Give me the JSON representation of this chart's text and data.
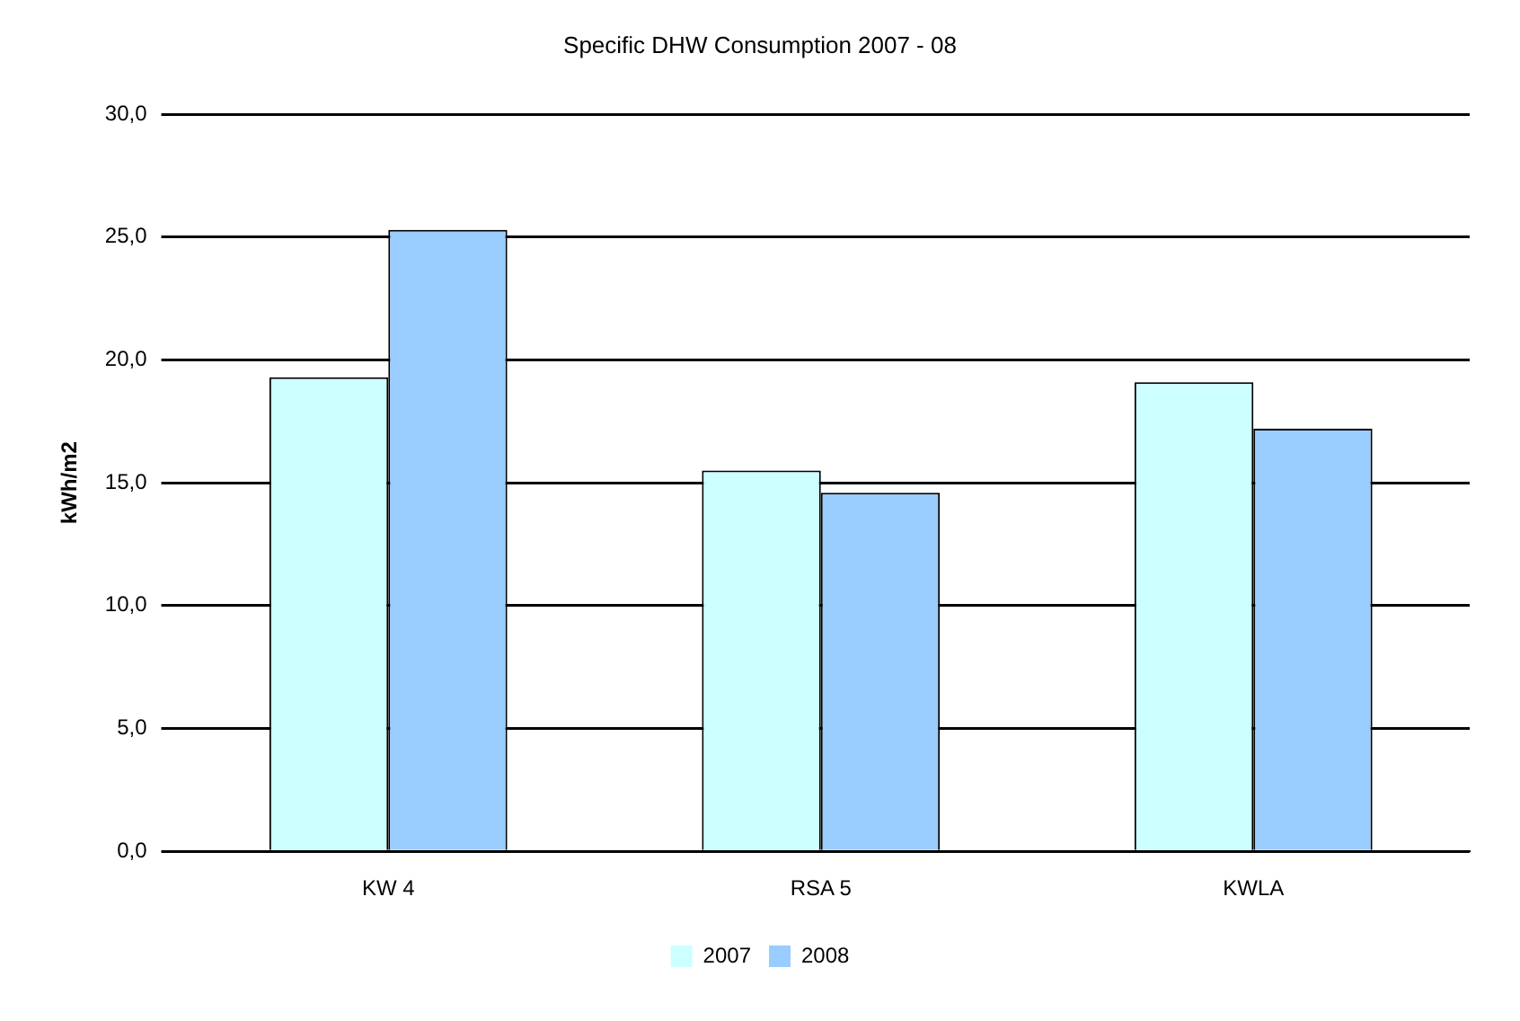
{
  "chart_data": {
    "type": "bar",
    "title": "Specific DHW Consumption 2007 - 08",
    "ylabel": "kWh/m2",
    "categories": [
      "KW 4",
      "RSA 5",
      "KWLA"
    ],
    "series": [
      {
        "name": "2007",
        "color": "#ccffff",
        "values": [
          19.3,
          15.5,
          19.1
        ]
      },
      {
        "name": "2008",
        "color": "#99ccff",
        "values": [
          25.3,
          14.6,
          17.2
        ]
      }
    ],
    "ylim": [
      0,
      30
    ],
    "yticks": [
      {
        "value": 0,
        "label": "0,0"
      },
      {
        "value": 5,
        "label": "5,0"
      },
      {
        "value": 10,
        "label": "10,0"
      },
      {
        "value": 15,
        "label": "15,0"
      },
      {
        "value": 20,
        "label": "20,0"
      },
      {
        "value": 25,
        "label": "25,0"
      },
      {
        "value": 30,
        "label": "30,0"
      }
    ],
    "grid": "y",
    "legend": "bottom"
  }
}
